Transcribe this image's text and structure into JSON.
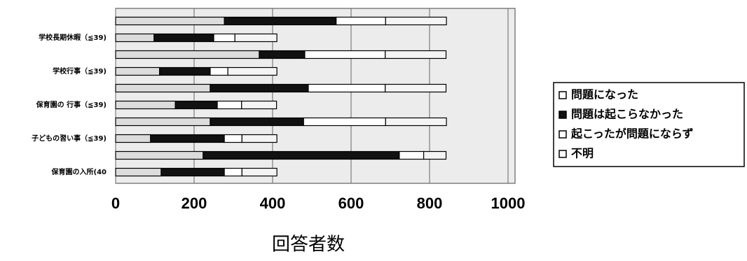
{
  "chart_data": {
    "type": "bar",
    "orientation": "horizontal",
    "stacked": true,
    "x_label": "回答者数",
    "categories": [
      null,
      "学校長期休暇（≦39)",
      null,
      "学校行事（≦39)",
      null,
      "保育園の 行事（≦39)",
      null,
      "子どもの習い事（≦39)",
      null,
      "保育園の入所(40"
    ],
    "series": [
      {
        "name": "問題になった",
        "color": "#dcdcdc",
        "values": [
          277,
          98,
          366,
          112,
          241,
          152,
          241,
          89,
          223,
          116
        ]
      },
      {
        "name": "問題は起こらなかった",
        "color": "#111111",
        "values": [
          285,
          152,
          116,
          129,
          250,
          107,
          238,
          188,
          500,
          161
        ]
      },
      {
        "name": "起こったが問題にならず",
        "color": "#ffffff",
        "values": [
          126,
          54,
          205,
          45,
          196,
          62,
          209,
          45,
          62,
          45
        ]
      },
      {
        "name": "不明",
        "color": "#f4f4f4",
        "values": [
          155,
          107,
          155,
          125,
          155,
          89,
          155,
          89,
          57,
          89
        ]
      }
    ],
    "xlim": [
      0,
      1000
    ],
    "xticks": [
      0,
      200,
      400,
      600,
      800,
      1000
    ],
    "grid": true,
    "legend": "right"
  }
}
